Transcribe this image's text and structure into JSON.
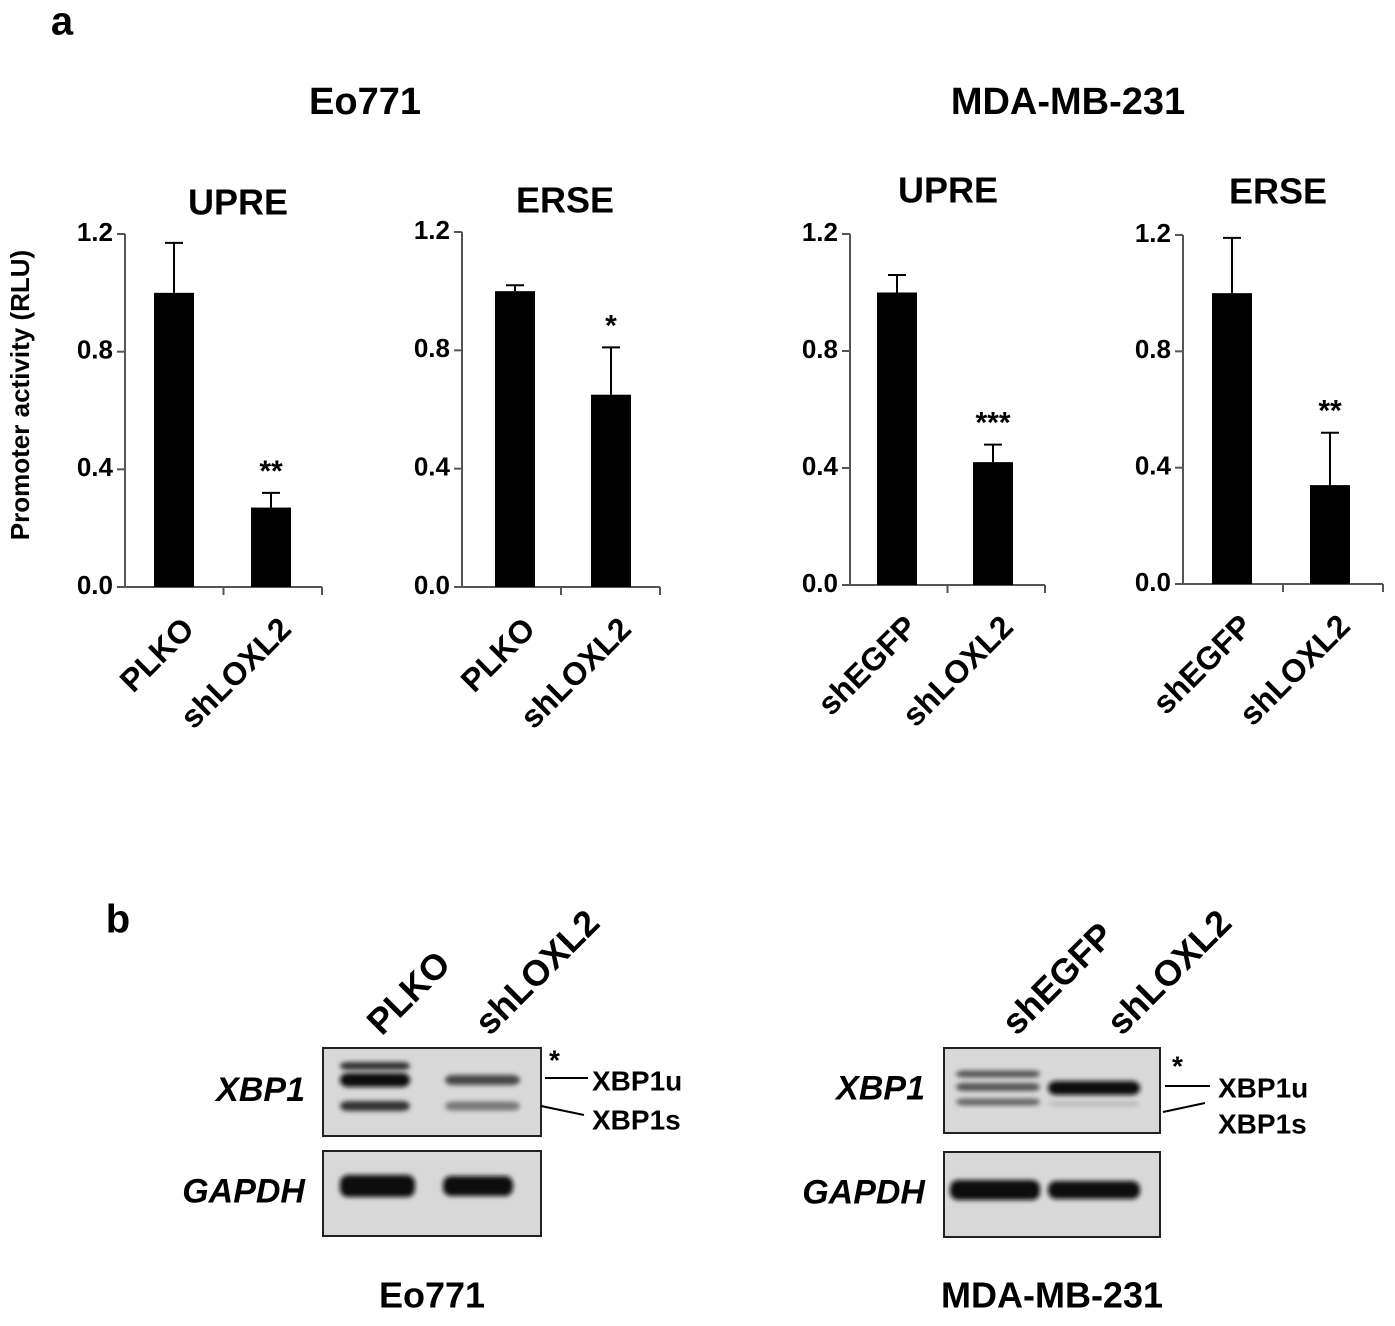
{
  "panels": [
    "a",
    "b"
  ],
  "groups": [
    "Eo771",
    "MDA-MB-231"
  ],
  "chart_data": [
    {
      "type": "bar",
      "title": "UPRE",
      "ylabel": "Promoter activity (RLU)",
      "categories": [
        "PLKO",
        "shLOXL2"
      ],
      "values": [
        1.0,
        0.27
      ],
      "errors": [
        0.17,
        0.05
      ],
      "color": "#000000",
      "ylim": [
        0,
        1.2
      ],
      "yticks": [
        {
          "value": 0,
          "label": "0.0"
        },
        0.4,
        0.8,
        1.2
      ],
      "annotations": [
        {
          "category": "shLOXL2",
          "text": "**"
        }
      ]
    },
    {
      "type": "bar",
      "title": "ERSE",
      "categories": [
        "PLKO",
        "shLOXL2"
      ],
      "values": [
        1.0,
        0.65
      ],
      "errors": [
        0.02,
        0.16
      ],
      "color": "#000000",
      "ylim": [
        0,
        1.2
      ],
      "yticks": [
        {
          "value": 0,
          "label": "0.0"
        },
        0.4,
        0.8,
        1.2
      ],
      "annotations": [
        {
          "category": "shLOXL2",
          "text": "*"
        }
      ]
    },
    {
      "type": "bar",
      "title": "UPRE",
      "categories": [
        "shEGFP",
        "shLOXL2"
      ],
      "values": [
        1.0,
        0.42
      ],
      "errors": [
        0.06,
        0.06
      ],
      "color": "#000000",
      "ylim": [
        0,
        1.2
      ],
      "yticks": [
        {
          "value": 0,
          "label": "0.0"
        },
        0.4,
        0.8,
        1.2
      ],
      "annotations": [
        {
          "category": "shLOXL2",
          "text": "***"
        }
      ]
    },
    {
      "type": "bar",
      "title": "ERSE",
      "categories": [
        "shEGFP",
        "shLOXL2"
      ],
      "values": [
        1.0,
        0.34
      ],
      "errors": [
        0.19,
        0.18
      ],
      "color": "#000000",
      "ylim": [
        0,
        1.2
      ],
      "yticks": [
        {
          "value": 0,
          "label": "0.0"
        },
        0.4,
        0.8,
        1.2
      ],
      "annotations": [
        {
          "category": "shLOXL2",
          "text": "**"
        }
      ]
    }
  ],
  "gels": [
    {
      "cell_line": "Eo771",
      "lanes": [
        "PLKO",
        "shLOXL2"
      ],
      "genes": [
        "XBP1",
        "GAPDH"
      ],
      "bands": [
        "XBP1u",
        "XBP1s"
      ],
      "marker": "*"
    },
    {
      "cell_line": "MDA-MB-231",
      "lanes": [
        "shEGFP",
        "shLOXL2"
      ],
      "genes": [
        "XBP1",
        "GAPDH"
      ],
      "bands": [
        "XBP1u",
        "XBP1s"
      ],
      "marker": "*"
    }
  ]
}
